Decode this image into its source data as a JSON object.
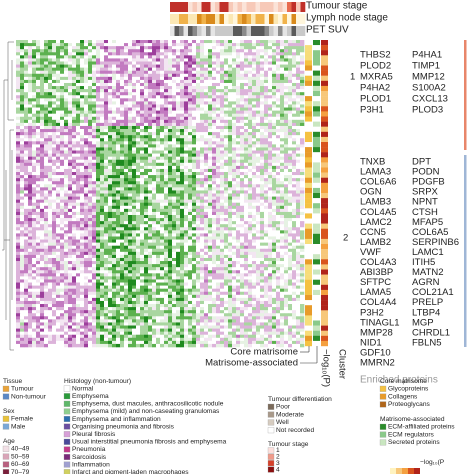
{
  "annotations": {
    "tumour_stage": "Tumour stage",
    "lymph_node_stage": "Lymph node stage",
    "pet_suv": "PET SUV"
  },
  "clusters": [
    {
      "label": "1",
      "genes_left": [
        "THBS2",
        "PLOD2",
        "MXRA5",
        "P4HA2",
        "PLOD1",
        "P3H1"
      ],
      "genes_right": [
        "P4HA1",
        "TIMP1",
        "MMP12",
        "S100A2",
        "CXCL13",
        "PLOD3"
      ]
    },
    {
      "label": "2",
      "genes_left": [
        "TNXB",
        "LAMA3",
        "COL6A6",
        "OGN",
        "LAMB3",
        "COL4A5",
        "LAMC2",
        "CCN5",
        "LAMB2",
        "VWF",
        "COL4A3",
        "ABI3BP",
        "SFTPC",
        "LAMA5",
        "COL4A4",
        "P3H2",
        "TINAGL1",
        "MMP28",
        "NID1",
        "GDF10",
        "MMRN2"
      ],
      "genes_right": [
        "DPT",
        "PODN",
        "PDGFB",
        "SRPX",
        "NPNT",
        "CTSH",
        "MFAP5",
        "COL6A5",
        "SERPINB6",
        "LAMC1",
        "ITIH5",
        "MATN2",
        "AGRN",
        "COL21A1",
        "PRELP",
        "LTBP4",
        "MGP",
        "CHRDL1",
        "FBLN5"
      ]
    }
  ],
  "enriched_proteins": "Enriched proteins",
  "bottom_labels": {
    "core_matrisome": "Core matrisome",
    "matrisome_associated": "Matrisome-associated",
    "log_p": "−log₁₀(P)",
    "cluster": "Cluster"
  },
  "legend": {
    "tissue": {
      "title": "Tissue",
      "items": [
        "Tumour",
        "Non-tumour"
      ]
    },
    "sex": {
      "title": "Sex",
      "items": [
        "Female",
        "Male"
      ]
    },
    "age": {
      "title": "Age",
      "items": [
        "40–49",
        "50–59",
        "60–69",
        "70–79"
      ]
    },
    "histology": {
      "title": "Histology (non-tumour)",
      "items": [
        "Normal",
        "Emphysema",
        "Emphysema, dust macules, anthracosilicotic nodule",
        "Emphysema (mild) and non-caseating granulomas",
        "Emphysema and inflammation",
        "Organising pneumonia and fibrosis",
        "Pleural fibrosis",
        "Usual interstitial pneumonia fibrosis and emphysema",
        "Pneumonia",
        "Sarcoidosis",
        "Inflammation",
        "Infarct and pigment-laden macrophages"
      ]
    },
    "tumour_differentiation": {
      "title": "Tumour differentiation",
      "items": [
        "Poor",
        "Moderate",
        "Well",
        "Not recorded"
      ]
    },
    "tumour_stage": {
      "title": "Tumour stage",
      "items": [
        "1",
        "2",
        "3",
        "4"
      ]
    },
    "core_matrisome": {
      "title": "Core matrisome",
      "items": [
        "Glycoproteins",
        "Collagens",
        "Proteoglycans"
      ]
    },
    "matrisome_associated": {
      "title": "Matrisome-associated",
      "items": [
        "ECM-affiliated proteins",
        "ECM regulators",
        "Secreted proteins"
      ]
    },
    "log_p": {
      "title": "−log₁₀(P"
    }
  }
}
